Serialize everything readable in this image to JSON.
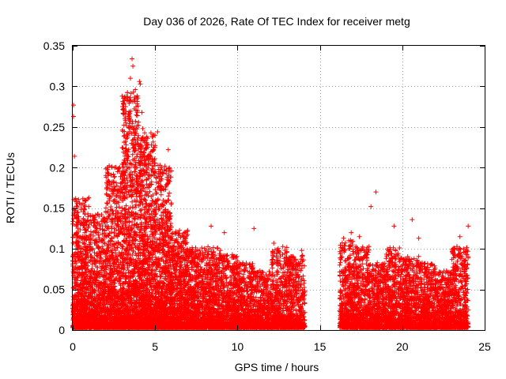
{
  "chart_data": {
    "type": "scatter",
    "title": "Day 036 of 2026, Rate Of TEC Index for receiver metg",
    "xlabel": "GPS time / hours",
    "ylabel": "ROTI / TECUs",
    "xlim": [
      0,
      25
    ],
    "ylim": [
      0,
      0.35
    ],
    "x_ticks": [
      0,
      5,
      10,
      15,
      20,
      25
    ],
    "x_tick_labels": [
      "0",
      "5",
      "10",
      "15",
      "20",
      "25"
    ],
    "y_ticks": [
      0,
      0.05,
      0.1,
      0.15,
      0.2,
      0.25,
      0.3,
      0.35
    ],
    "y_tick_labels": [
      "0",
      "0.05",
      "0.1",
      "0.15",
      "0.2",
      "0.25",
      "0.3",
      "0.35"
    ],
    "grid": true,
    "marker": "+",
    "marker_color": "#ff0000",
    "data_gap_hours": [
      14.1,
      16.2
    ],
    "notable_points": [
      {
        "x": 0.05,
        "y": 0.277
      },
      {
        "x": 0.05,
        "y": 0.263
      },
      {
        "x": 0.1,
        "y": 0.214
      },
      {
        "x": 2.1,
        "y": 0.2
      },
      {
        "x": 3.0,
        "y": 0.288
      },
      {
        "x": 3.1,
        "y": 0.278
      },
      {
        "x": 3.2,
        "y": 0.258
      },
      {
        "x": 3.25,
        "y": 0.252
      },
      {
        "x": 3.3,
        "y": 0.241
      },
      {
        "x": 3.5,
        "y": 0.31
      },
      {
        "x": 3.6,
        "y": 0.334
      },
      {
        "x": 3.65,
        "y": 0.325
      },
      {
        "x": 3.8,
        "y": 0.296
      },
      {
        "x": 4.05,
        "y": 0.306
      },
      {
        "x": 4.1,
        "y": 0.303
      },
      {
        "x": 4.2,
        "y": 0.268
      },
      {
        "x": 4.25,
        "y": 0.248
      },
      {
        "x": 5.15,
        "y": 0.244
      },
      {
        "x": 5.4,
        "y": 0.2
      },
      {
        "x": 5.8,
        "y": 0.222
      },
      {
        "x": 6.7,
        "y": 0.115
      },
      {
        "x": 8.4,
        "y": 0.128
      },
      {
        "x": 9.2,
        "y": 0.12
      },
      {
        "x": 11.0,
        "y": 0.125
      },
      {
        "x": 12.2,
        "y": 0.107
      },
      {
        "x": 13.9,
        "y": 0.098
      },
      {
        "x": 16.9,
        "y": 0.12
      },
      {
        "x": 17.4,
        "y": 0.115
      },
      {
        "x": 18.4,
        "y": 0.17
      },
      {
        "x": 18.1,
        "y": 0.152
      },
      {
        "x": 19.5,
        "y": 0.128
      },
      {
        "x": 20.6,
        "y": 0.136
      },
      {
        "x": 21.0,
        "y": 0.113
      },
      {
        "x": 23.5,
        "y": 0.115
      },
      {
        "x": 24.0,
        "y": 0.128
      }
    ],
    "density_profile": [
      {
        "x0": 0.0,
        "x1": 1.0,
        "peak": 0.16,
        "n": 800
      },
      {
        "x0": 1.0,
        "x1": 2.0,
        "peak": 0.14,
        "n": 700
      },
      {
        "x0": 2.0,
        "x1": 3.0,
        "peak": 0.2,
        "n": 800
      },
      {
        "x0": 3.0,
        "x1": 4.0,
        "peak": 0.29,
        "n": 1100
      },
      {
        "x0": 4.0,
        "x1": 5.0,
        "peak": 0.24,
        "n": 1100
      },
      {
        "x0": 5.0,
        "x1": 6.0,
        "peak": 0.2,
        "n": 900
      },
      {
        "x0": 6.0,
        "x1": 7.0,
        "peak": 0.12,
        "n": 750
      },
      {
        "x0": 7.0,
        "x1": 8.0,
        "peak": 0.1,
        "n": 600
      },
      {
        "x0": 8.0,
        "x1": 9.0,
        "peak": 0.1,
        "n": 600
      },
      {
        "x0": 9.0,
        "x1": 10.0,
        "peak": 0.09,
        "n": 550
      },
      {
        "x0": 10.0,
        "x1": 11.0,
        "peak": 0.08,
        "n": 500
      },
      {
        "x0": 11.0,
        "x1": 12.0,
        "peak": 0.07,
        "n": 450
      },
      {
        "x0": 12.0,
        "x1": 13.0,
        "peak": 0.1,
        "n": 500
      },
      {
        "x0": 13.0,
        "x1": 14.1,
        "peak": 0.09,
        "n": 500
      },
      {
        "x0": 16.2,
        "x1": 17.0,
        "peak": 0.11,
        "n": 450
      },
      {
        "x0": 17.0,
        "x1": 18.0,
        "peak": 0.1,
        "n": 500
      },
      {
        "x0": 18.0,
        "x1": 19.0,
        "peak": 0.08,
        "n": 500
      },
      {
        "x0": 19.0,
        "x1": 20.0,
        "peak": 0.1,
        "n": 500
      },
      {
        "x0": 20.0,
        "x1": 21.0,
        "peak": 0.09,
        "n": 500
      },
      {
        "x0": 21.0,
        "x1": 22.0,
        "peak": 0.08,
        "n": 500
      },
      {
        "x0": 22.0,
        "x1": 23.0,
        "peak": 0.07,
        "n": 500
      },
      {
        "x0": 23.0,
        "x1": 24.0,
        "peak": 0.1,
        "n": 500
      }
    ]
  }
}
